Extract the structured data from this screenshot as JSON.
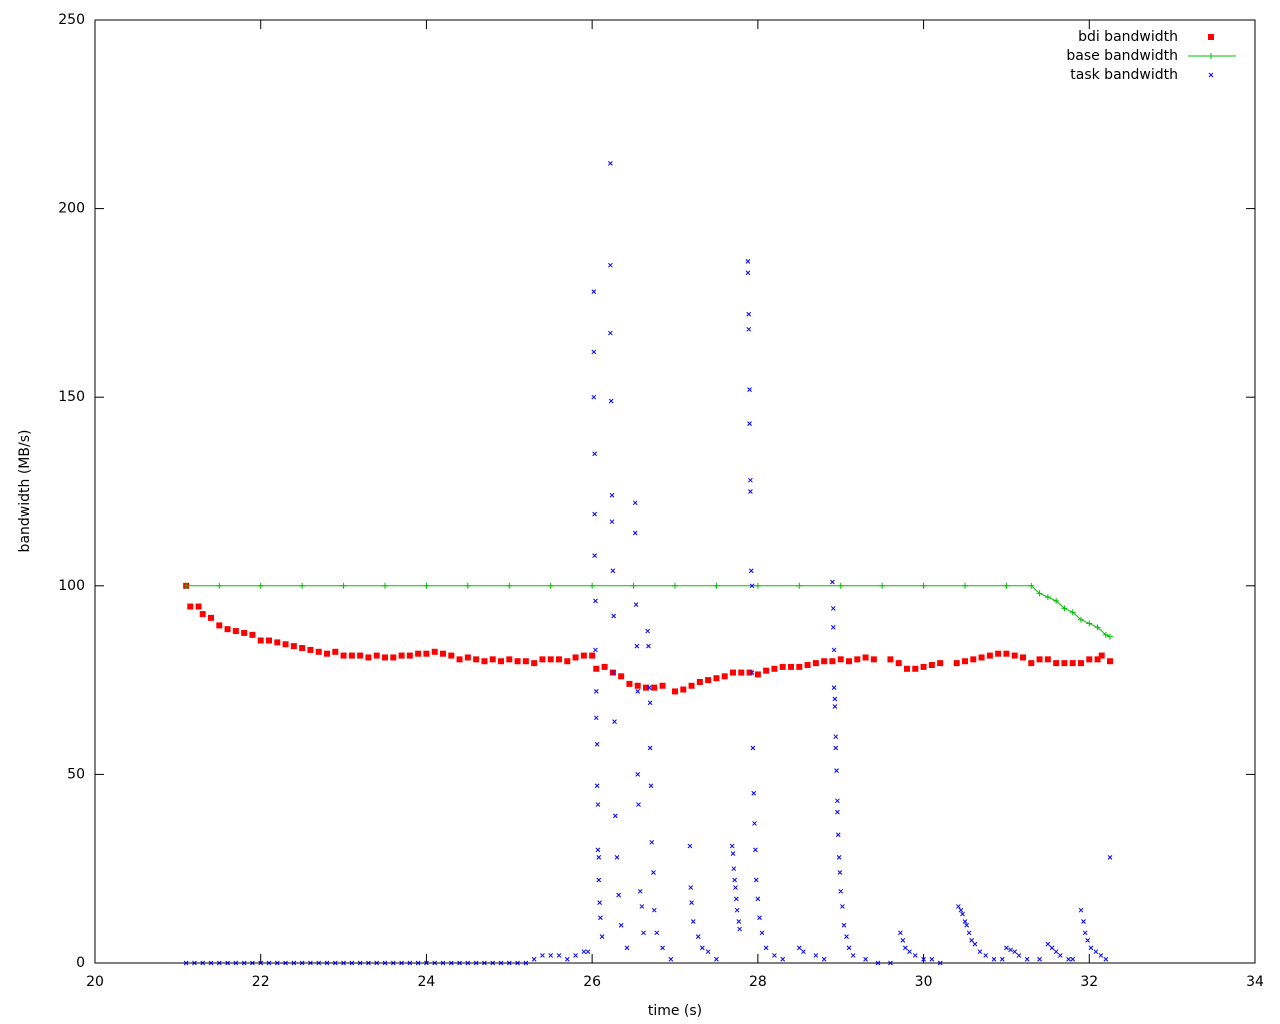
{
  "chart_data": {
    "type": "scatter",
    "xlabel": "time (s)",
    "ylabel": "bandwidth (MB/s)",
    "xlim": [
      20,
      34
    ],
    "xticks": [
      20,
      22,
      24,
      26,
      28,
      30,
      32,
      34
    ],
    "ylim": [
      0,
      250
    ],
    "yticks": [
      0,
      50,
      100,
      150,
      200,
      250
    ],
    "grid": false,
    "legend": "top-right",
    "series": [
      {
        "name": "bdi bandwidth",
        "color": "#ff0000",
        "marker": "square",
        "x": [
          21.1,
          21.15,
          21.25,
          21.3,
          21.4,
          21.5,
          21.6,
          21.7,
          21.8,
          21.9,
          22.0,
          22.1,
          22.2,
          22.3,
          22.4,
          22.5,
          22.6,
          22.7,
          22.8,
          22.9,
          23.0,
          23.1,
          23.2,
          23.3,
          23.4,
          23.5,
          23.6,
          23.7,
          23.8,
          23.9,
          24.0,
          24.1,
          24.2,
          24.3,
          24.4,
          24.5,
          24.6,
          24.7,
          24.8,
          24.9,
          25.0,
          25.1,
          25.2,
          25.3,
          25.4,
          25.5,
          25.6,
          25.7,
          25.8,
          25.9,
          26.0,
          26.05,
          26.15,
          26.25,
          26.35,
          26.45,
          26.55,
          26.65,
          26.75,
          26.85,
          27.0,
          27.1,
          27.2,
          27.3,
          27.4,
          27.5,
          27.6,
          27.7,
          27.8,
          27.9,
          28.0,
          28.1,
          28.2,
          28.3,
          28.4,
          28.5,
          28.6,
          28.7,
          28.8,
          28.9,
          29.0,
          29.1,
          29.2,
          29.3,
          29.4,
          29.6,
          29.7,
          29.8,
          29.9,
          30.0,
          30.1,
          30.2,
          30.4,
          30.5,
          30.6,
          30.7,
          30.8,
          30.9,
          31.0,
          31.1,
          31.2,
          31.3,
          31.4,
          31.5,
          31.6,
          31.7,
          31.8,
          31.9,
          32.0,
          32.1,
          32.15,
          32.25
        ],
        "values": [
          100,
          94.5,
          94.5,
          92.5,
          91.5,
          89.5,
          88.5,
          88,
          87.5,
          87,
          85.5,
          85.5,
          85,
          84.5,
          84,
          83.5,
          83,
          82.5,
          82,
          82.5,
          81.5,
          81.5,
          81.5,
          81,
          81.5,
          81,
          81,
          81.5,
          81.5,
          82,
          82,
          82.5,
          82,
          81.5,
          80.5,
          81,
          80.5,
          80,
          80.5,
          80,
          80.5,
          80,
          80,
          79.5,
          80.5,
          80.5,
          80.5,
          80,
          81,
          81.5,
          81.5,
          78,
          78.5,
          77,
          76,
          74,
          73.5,
          73,
          73,
          73.5,
          72,
          72.5,
          73.5,
          74.5,
          75,
          75.5,
          76,
          77,
          77,
          77,
          76.5,
          77.5,
          78,
          78.5,
          78.5,
          78.5,
          79,
          79.5,
          80,
          80,
          80.5,
          80,
          80.5,
          81,
          80.5,
          80.5,
          79.5,
          78,
          78,
          78.5,
          79,
          79.5,
          79.5,
          80,
          80.5,
          81,
          81.5,
          82,
          82,
          81.5,
          81,
          79.5,
          80.5,
          80.5,
          79.5,
          79.5,
          79.5,
          79.5,
          80.5,
          80.5,
          81.5,
          80
        ]
      },
      {
        "name": "base bandwidth",
        "color": "#00c000",
        "marker": "plus",
        "line": true,
        "x": [
          21.1,
          21.5,
          22.0,
          22.5,
          23.0,
          23.5,
          24.0,
          24.5,
          25.0,
          25.5,
          26.0,
          26.5,
          27.0,
          27.5,
          28.0,
          28.5,
          29.0,
          29.5,
          30.0,
          30.5,
          31.0,
          31.3,
          31.4,
          31.5,
          31.6,
          31.7,
          31.8,
          31.9,
          32.0,
          32.1,
          32.2,
          32.25
        ],
        "values": [
          100,
          100,
          100,
          100,
          100,
          100,
          100,
          100,
          100,
          100,
          100,
          100,
          100,
          100,
          100,
          100,
          100,
          100,
          100,
          100,
          100,
          100,
          98,
          97,
          96,
          94,
          93,
          91,
          90,
          89,
          87,
          86.5
        ]
      },
      {
        "name": "task bandwidth",
        "color": "#0000ff",
        "marker": "cross",
        "x": [
          21.1,
          21.2,
          21.3,
          21.4,
          21.5,
          21.6,
          21.7,
          21.8,
          21.9,
          22.0,
          22.1,
          22.2,
          22.3,
          22.4,
          22.5,
          22.6,
          22.7,
          22.8,
          22.9,
          23.0,
          23.1,
          23.2,
          23.3,
          23.4,
          23.5,
          23.6,
          23.7,
          23.8,
          23.9,
          24.0,
          24.1,
          24.2,
          24.3,
          24.4,
          24.5,
          24.6,
          24.7,
          24.8,
          24.9,
          25.0,
          25.1,
          25.2,
          25.3,
          25.4,
          25.5,
          25.6,
          25.7,
          25.8,
          25.9,
          25.95,
          26.02,
          26.02,
          26.02,
          26.03,
          26.03,
          26.03,
          26.04,
          26.04,
          26.05,
          26.05,
          26.06,
          26.06,
          26.07,
          26.07,
          26.08,
          26.08,
          26.09,
          26.1,
          26.12,
          26.22,
          26.22,
          26.22,
          26.23,
          26.24,
          26.24,
          26.25,
          26.26,
          26.26,
          26.27,
          26.28,
          26.3,
          26.32,
          26.35,
          26.42,
          26.52,
          26.52,
          26.53,
          26.54,
          26.55,
          26.55,
          26.56,
          26.58,
          26.6,
          26.62,
          26.67,
          26.68,
          26.69,
          26.7,
          26.7,
          26.71,
          26.72,
          26.74,
          26.75,
          26.78,
          26.85,
          26.95,
          27.18,
          27.19,
          27.2,
          27.22,
          27.28,
          27.33,
          27.4,
          27.5,
          27.69,
          27.7,
          27.71,
          27.72,
          27.73,
          27.74,
          27.75,
          27.77,
          27.78,
          27.88,
          27.88,
          27.89,
          27.89,
          27.9,
          27.9,
          27.91,
          27.91,
          27.92,
          27.93,
          27.93,
          27.94,
          27.95,
          27.96,
          27.97,
          27.98,
          28.0,
          28.02,
          28.05,
          28.1,
          28.2,
          28.3,
          28.5,
          28.55,
          28.7,
          28.8,
          28.9,
          28.91,
          28.91,
          28.92,
          28.92,
          28.93,
          28.93,
          28.94,
          28.94,
          28.95,
          28.96,
          28.96,
          28.97,
          28.98,
          28.99,
          29.0,
          29.02,
          29.04,
          29.07,
          29.1,
          29.15,
          29.3,
          29.45,
          29.6,
          29.72,
          29.75,
          29.78,
          29.83,
          29.9,
          30.0,
          30.1,
          30.2,
          30.42,
          30.45,
          30.47,
          30.5,
          30.52,
          30.55,
          30.58,
          30.62,
          30.68,
          30.75,
          30.85,
          30.95,
          31.0,
          31.05,
          31.1,
          31.15,
          31.25,
          31.4,
          31.5,
          31.55,
          31.6,
          31.65,
          31.75,
          31.8,
          31.9,
          31.93,
          31.95,
          31.98,
          32.02,
          32.08,
          32.14,
          32.2,
          32.25
        ],
        "values": [
          0,
          0,
          0,
          0,
          0,
          0,
          0,
          0,
          0,
          0,
          0,
          0,
          0,
          0,
          0,
          0,
          0,
          0,
          0,
          0,
          0,
          0,
          0,
          0,
          0,
          0,
          0,
          0,
          0,
          0,
          0,
          0,
          0,
          0,
          0,
          0,
          0,
          0,
          0,
          0,
          0,
          0,
          1,
          2,
          2,
          2,
          1,
          2,
          3,
          3,
          178,
          162,
          150,
          135,
          119,
          108,
          96,
          83,
          72,
          65,
          58,
          47,
          42,
          30,
          28,
          22,
          16,
          12,
          7,
          212,
          185,
          167,
          149,
          124,
          117,
          104,
          92,
          77,
          64,
          39,
          28,
          18,
          10,
          4,
          122,
          114,
          95,
          84,
          72,
          50,
          42,
          19,
          15,
          8,
          88,
          84,
          73,
          69,
          57,
          47,
          32,
          24,
          14,
          8,
          4,
          1,
          31,
          20,
          16,
          11,
          7,
          4,
          3,
          1,
          31,
          29,
          25,
          22,
          20,
          17,
          14,
          11,
          9,
          186,
          183,
          172,
          168,
          152,
          143,
          128,
          125,
          104,
          100,
          77,
          57,
          45,
          37,
          30,
          22,
          17,
          12,
          8,
          4,
          2,
          1,
          4,
          3,
          2,
          1,
          101,
          94,
          89,
          83,
          73,
          70,
          68,
          60,
          57,
          51,
          43,
          40,
          34,
          28,
          24,
          19,
          15,
          10,
          7,
          4,
          2,
          1,
          0,
          0,
          8,
          6,
          4,
          3,
          2,
          1,
          1,
          0,
          15,
          14,
          13,
          11,
          10,
          8,
          6,
          5,
          3,
          2,
          1,
          1,
          4,
          3.5,
          3,
          2,
          1,
          1,
          5,
          4,
          3,
          2,
          1,
          1,
          14,
          11,
          8,
          6,
          4,
          3,
          2,
          1,
          28
        ]
      }
    ]
  }
}
